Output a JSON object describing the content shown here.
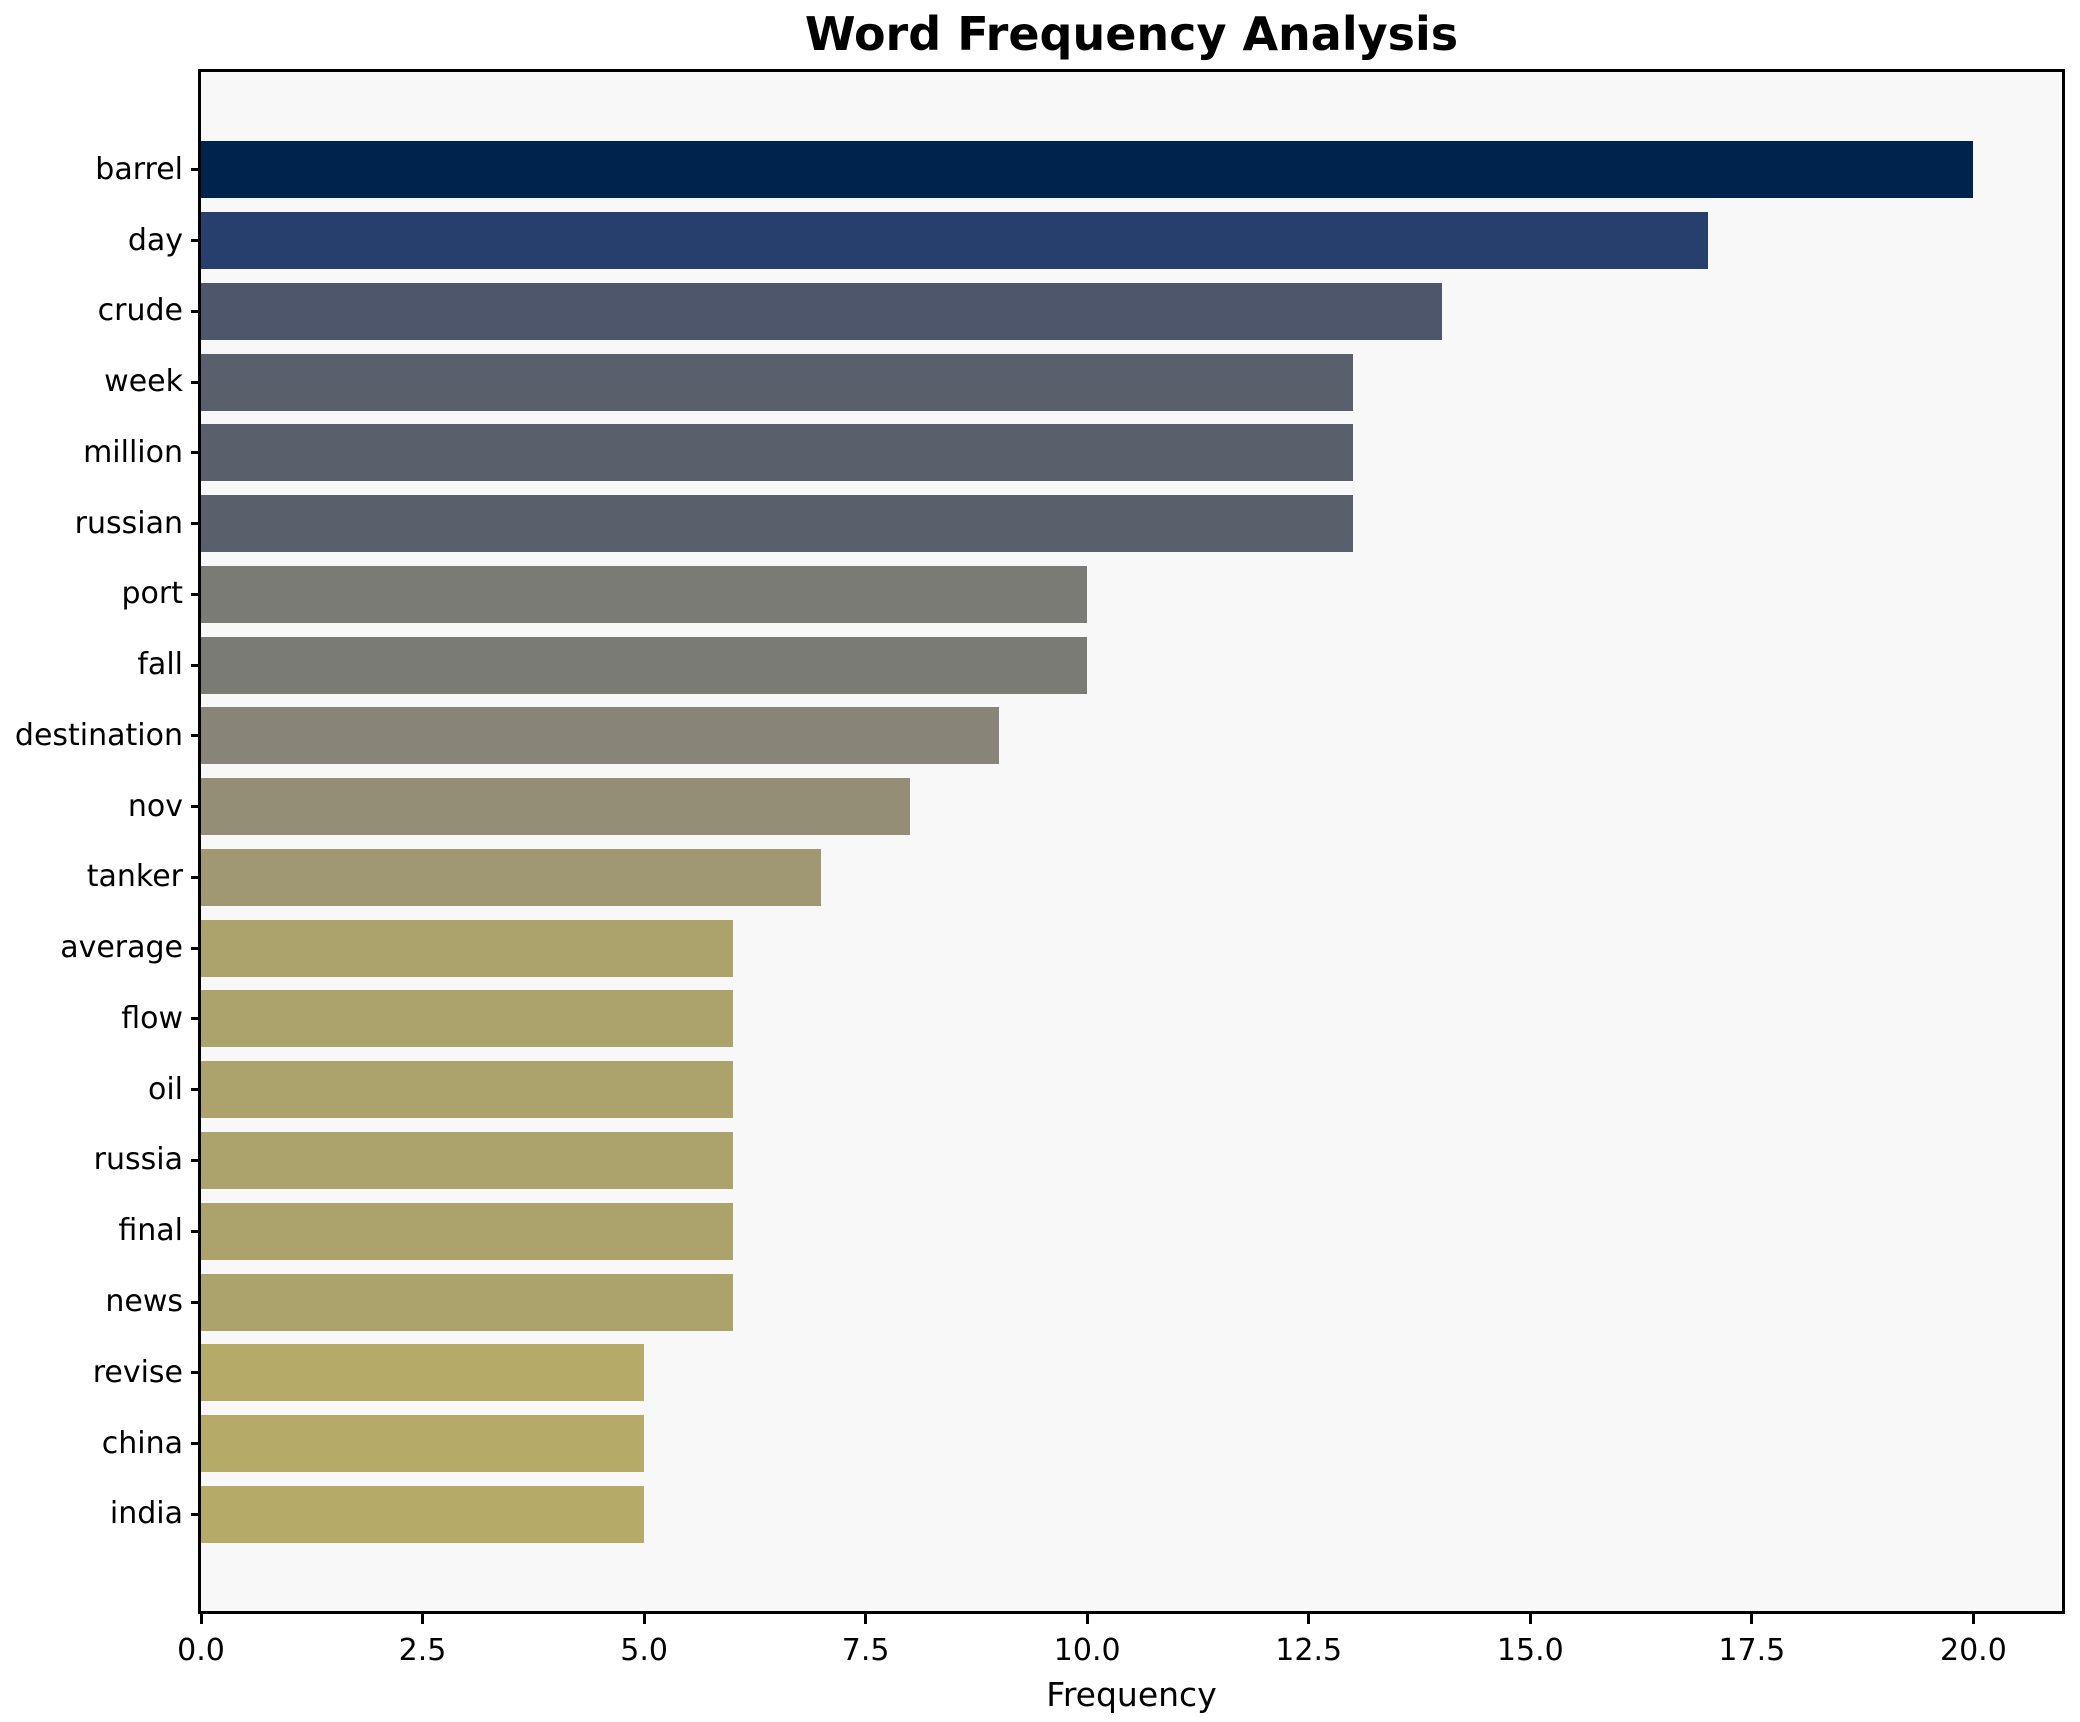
{
  "chart_data": {
    "type": "bar",
    "orientation": "horizontal",
    "title": "Word Frequency Analysis",
    "xlabel": "Frequency",
    "ylabel": "",
    "categories": [
      "barrel",
      "day",
      "crude",
      "week",
      "million",
      "russian",
      "port",
      "fall",
      "destination",
      "nov",
      "tanker",
      "average",
      "flow",
      "oil",
      "russia",
      "final",
      "news",
      "revise",
      "china",
      "india"
    ],
    "values": [
      20,
      17,
      14,
      13,
      13,
      13,
      10,
      10,
      9,
      8,
      7,
      6,
      6,
      6,
      6,
      6,
      6,
      5,
      5,
      5
    ],
    "bar_colors": [
      "#00234e",
      "#273f6d",
      "#4e566b",
      "#5a5f6c",
      "#5a5f6c",
      "#5a5f6c",
      "#7b7b75",
      "#7b7b75",
      "#888578",
      "#948e76",
      "#a09872",
      "#aca26c",
      "#aca26c",
      "#aca26c",
      "#aca26c",
      "#aca26c",
      "#aca26c",
      "#b6aa69",
      "#b6aa69",
      "#b6aa69"
    ],
    "xlim": [
      0,
      21
    ],
    "x_ticks": [
      0.0,
      2.5,
      5.0,
      7.5,
      10.0,
      12.5,
      15.0,
      17.5,
      20.0
    ],
    "x_tick_labels": [
      "0.0",
      "2.5",
      "5.0",
      "7.5",
      "10.0",
      "12.5",
      "15.0",
      "17.5",
      "20.0"
    ],
    "grid": false,
    "legend": "none",
    "plot_background": "#f8f8f9",
    "figure_background": "#ffffff",
    "spine_color": "#000000",
    "text_color": "#000000"
  }
}
